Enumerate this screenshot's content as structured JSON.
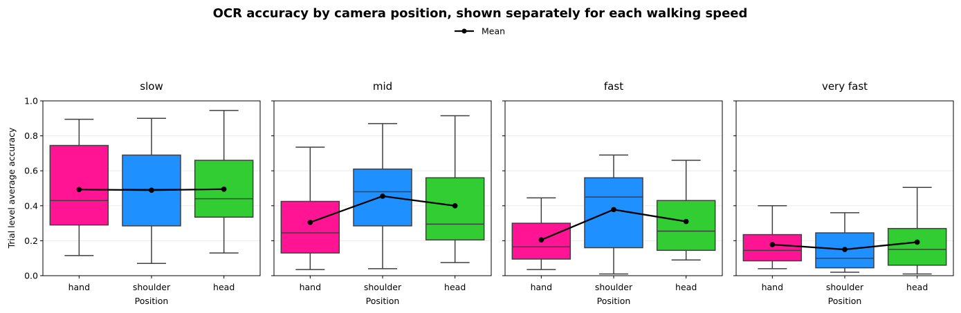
{
  "chart_data": {
    "type": "box",
    "title": "OCR accuracy by camera position, shown separately for each walking speed",
    "xlabel": "Position",
    "ylabel": "Trial level average accuracy",
    "ylim": [
      0.0,
      1.0
    ],
    "yticks": [
      "0.0",
      "0.2",
      "0.4",
      "0.6",
      "0.8",
      "1.0"
    ],
    "grid": "y",
    "legend": {
      "placement": "top-center",
      "entries": [
        "Mean"
      ]
    },
    "categories": [
      "hand",
      "shoulder",
      "head"
    ],
    "category_colors": [
      "#ff1493",
      "#1e90ff",
      "#32cd32"
    ],
    "mean_color": "#000000",
    "panels": [
      {
        "title": "slow",
        "boxes": [
          {
            "whisker_low": 0.115,
            "q1": 0.29,
            "median": 0.43,
            "q3": 0.745,
            "whisker_high": 0.895
          },
          {
            "whisker_low": 0.07,
            "q1": 0.285,
            "median": 0.495,
            "q3": 0.69,
            "whisker_high": 0.9
          },
          {
            "whisker_low": 0.13,
            "q1": 0.335,
            "median": 0.44,
            "q3": 0.66,
            "whisker_high": 0.945
          }
        ],
        "mean": [
          0.493,
          0.489,
          0.495
        ]
      },
      {
        "title": "mid",
        "boxes": [
          {
            "whisker_low": 0.035,
            "q1": 0.13,
            "median": 0.245,
            "q3": 0.425,
            "whisker_high": 0.735
          },
          {
            "whisker_low": 0.04,
            "q1": 0.285,
            "median": 0.48,
            "q3": 0.61,
            "whisker_high": 0.87
          },
          {
            "whisker_low": 0.075,
            "q1": 0.205,
            "median": 0.295,
            "q3": 0.56,
            "whisker_high": 0.915
          }
        ],
        "mean": [
          0.305,
          0.455,
          0.4
        ]
      },
      {
        "title": "fast",
        "boxes": [
          {
            "whisker_low": 0.035,
            "q1": 0.095,
            "median": 0.165,
            "q3": 0.3,
            "whisker_high": 0.445
          },
          {
            "whisker_low": 0.01,
            "q1": 0.16,
            "median": 0.45,
            "q3": 0.56,
            "whisker_high": 0.69
          },
          {
            "whisker_low": 0.09,
            "q1": 0.145,
            "median": 0.255,
            "q3": 0.43,
            "whisker_high": 0.66
          }
        ],
        "mean": [
          0.205,
          0.378,
          0.31
        ]
      },
      {
        "title": "very fast",
        "boxes": [
          {
            "whisker_low": 0.04,
            "q1": 0.085,
            "median": 0.145,
            "q3": 0.235,
            "whisker_high": 0.4
          },
          {
            "whisker_low": 0.02,
            "q1": 0.045,
            "median": 0.1,
            "q3": 0.245,
            "whisker_high": 0.36
          },
          {
            "whisker_low": 0.01,
            "q1": 0.06,
            "median": 0.15,
            "q3": 0.27,
            "whisker_high": 0.505
          }
        ],
        "mean": [
          0.178,
          0.15,
          0.192
        ]
      }
    ]
  }
}
